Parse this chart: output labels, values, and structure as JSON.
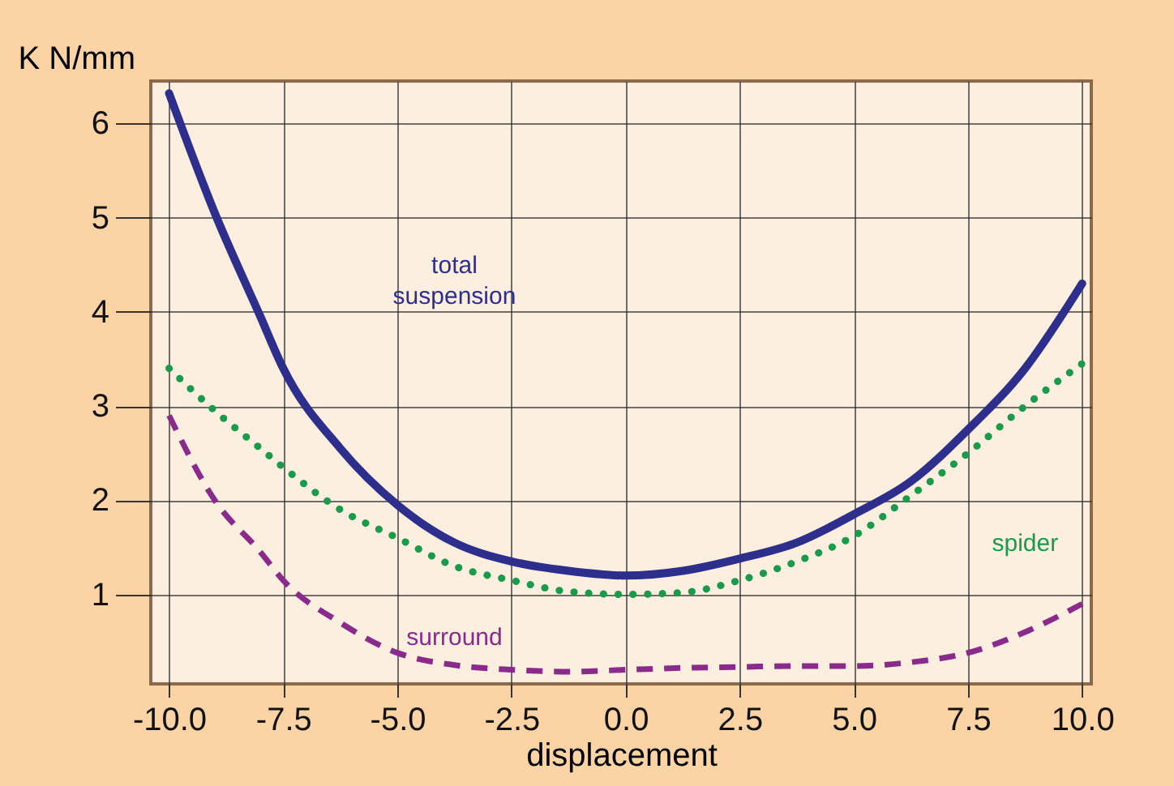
{
  "chart_data": {
    "type": "line",
    "xlabel": "displacement",
    "ylabel": "K N/mm",
    "x": [
      -10,
      -9,
      -8,
      -7.5,
      -6.25,
      -5,
      -3.75,
      -2.5,
      -1.25,
      0,
      1.25,
      2.5,
      3.75,
      5,
      6.25,
      7.5,
      8.75,
      10
    ],
    "series": [
      {
        "name": "total suspension",
        "color": "#2e2e8c",
        "line_style": "solid",
        "values": [
          6.32,
          5.05,
          3.95,
          3.4,
          2.55,
          1.95,
          1.55,
          1.35,
          1.25,
          1.2,
          1.25,
          1.38,
          1.55,
          1.85,
          2.2,
          2.75,
          3.4,
          4.3
        ]
      },
      {
        "name": "spider",
        "color": "#1a9a4a",
        "line_style": "dotted",
        "values": [
          3.4,
          2.95,
          2.55,
          2.35,
          1.9,
          1.6,
          1.3,
          1.15,
          1.03,
          1.0,
          1.02,
          1.15,
          1.35,
          1.62,
          2.05,
          2.5,
          3.0,
          3.45
        ]
      },
      {
        "name": "surround",
        "color": "#8a2a8a",
        "line_style": "dashed",
        "values": [
          2.9,
          2.0,
          1.45,
          1.15,
          0.7,
          0.38,
          0.25,
          0.2,
          0.18,
          0.2,
          0.22,
          0.23,
          0.24,
          0.24,
          0.28,
          0.38,
          0.6,
          0.9
        ]
      }
    ],
    "xlim": [
      -10.4,
      10.2
    ],
    "xticks": [
      {
        "value": -10,
        "label": "-10.0"
      },
      {
        "value": -7.5,
        "label": "-7.5"
      },
      {
        "value": -5,
        "label": "-5.0"
      },
      {
        "value": -2.5,
        "label": "-2.5"
      },
      {
        "value": 0,
        "label": "0.0"
      },
      {
        "value": 2.5,
        "label": "2.5"
      },
      {
        "value": 5,
        "label": "5.0"
      },
      {
        "value": 7.5,
        "label": "7.5"
      },
      {
        "value": 10,
        "label": "10.0"
      }
    ],
    "ylim": [
      0.05,
      6.45
    ],
    "yticks": [
      1,
      2,
      3,
      4,
      5,
      6
    ],
    "grid": true
  }
}
